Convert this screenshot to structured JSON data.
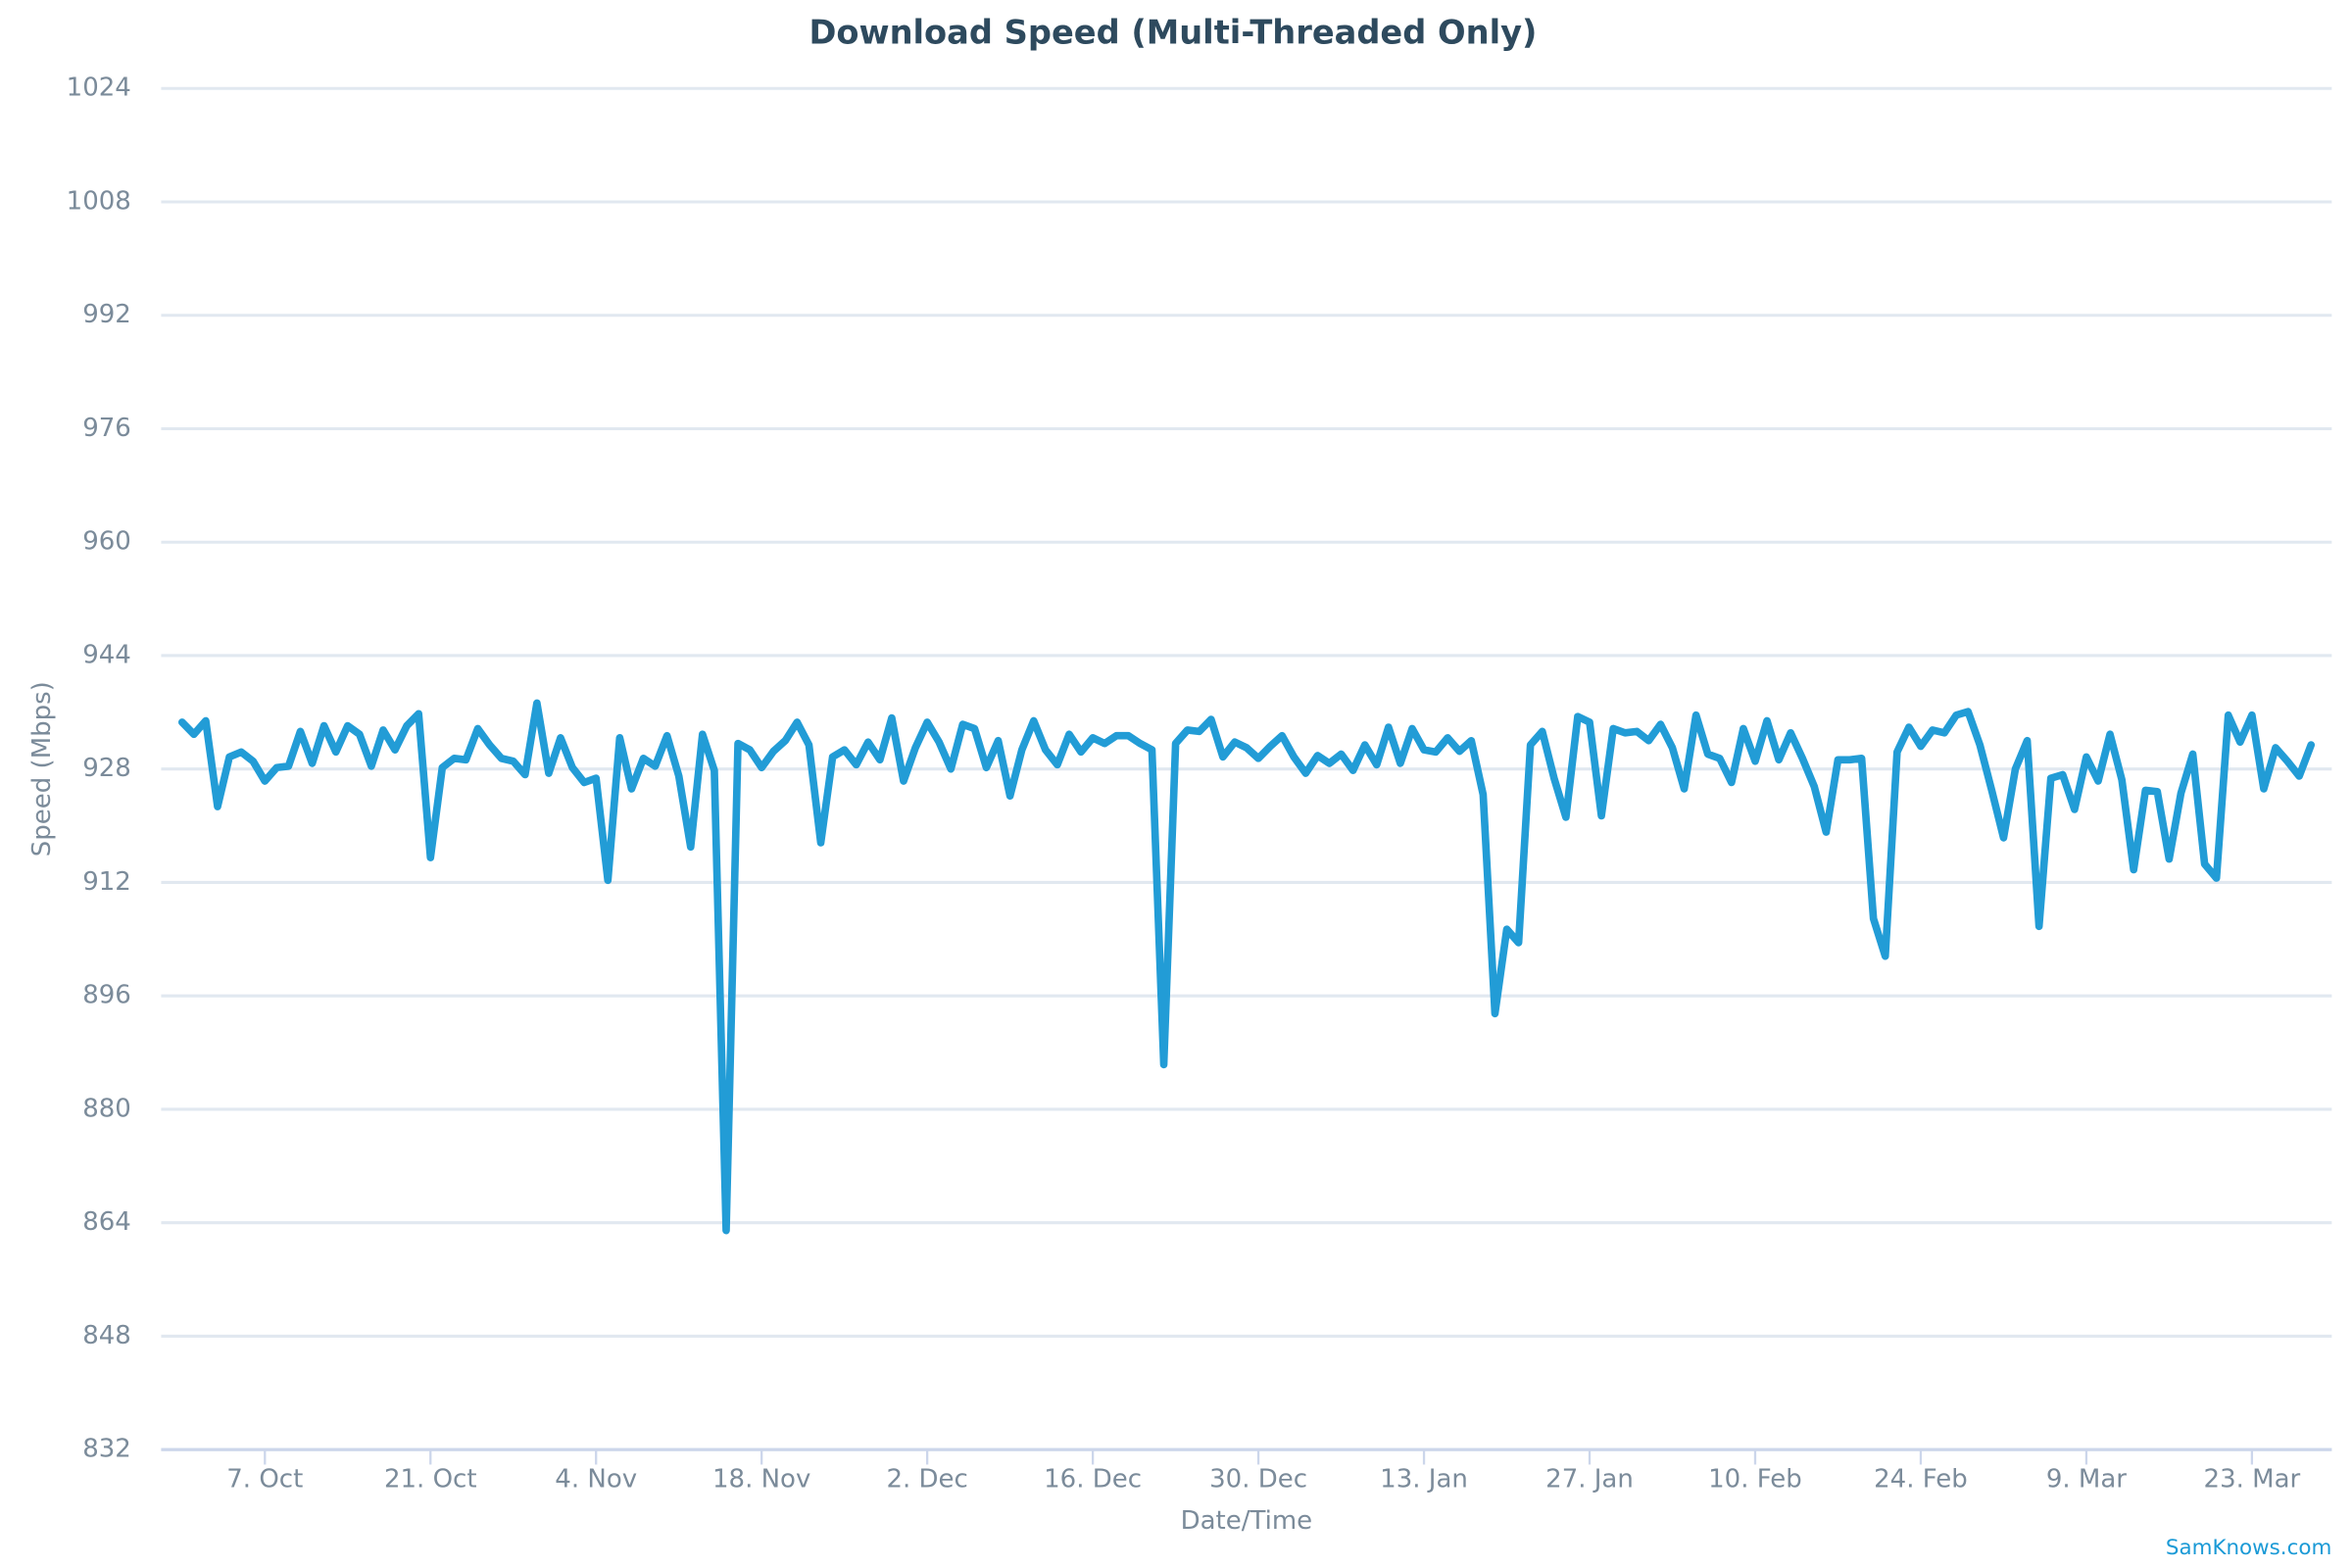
{
  "chart_data": {
    "type": "line",
    "title": "Download Speed (Multi-Threaded Only)",
    "x_label": "Date/Time",
    "y_label": "Speed (Mbps)",
    "credit": "SamKnows.com",
    "color": "#229cd6",
    "grid": true,
    "xlim": [
      -1.77,
      181.75
    ],
    "ylim": [
      832,
      1024
    ],
    "yticks": [
      832,
      848,
      864,
      880,
      896,
      912,
      928,
      944,
      960,
      976,
      992,
      1008,
      1024
    ],
    "xticks": [
      {
        "value": 7,
        "label": "7. Oct"
      },
      {
        "value": 21,
        "label": "21. Oct"
      },
      {
        "value": 35,
        "label": "4. Nov"
      },
      {
        "value": 49,
        "label": "18. Nov"
      },
      {
        "value": 63,
        "label": "2. Dec"
      },
      {
        "value": 77,
        "label": "16. Dec"
      },
      {
        "value": 91,
        "label": "30. Dec"
      },
      {
        "value": 105,
        "label": "13. Jan"
      },
      {
        "value": 119,
        "label": "27. Jan"
      },
      {
        "value": 133,
        "label": "10. Feb"
      },
      {
        "value": 147,
        "label": "24. Feb"
      },
      {
        "value": 161,
        "label": "9. Mar"
      },
      {
        "value": 175,
        "label": "23. Mar"
      }
    ],
    "x": [
      0,
      1,
      2,
      3,
      4,
      5,
      6,
      7,
      8,
      9,
      10,
      11,
      12,
      13,
      14,
      15,
      16,
      17,
      18,
      19,
      20,
      21,
      22,
      23,
      24,
      25,
      26,
      27,
      28,
      29,
      30,
      31,
      32,
      33,
      34,
      35,
      36,
      37,
      38,
      39,
      40,
      41,
      42,
      43,
      44,
      45,
      46,
      47,
      48,
      49,
      50,
      51,
      52,
      53,
      54,
      55,
      56,
      57,
      58,
      59,
      60,
      61,
      62,
      63,
      64,
      65,
      66,
      67,
      68,
      69,
      70,
      71,
      72,
      73,
      74,
      75,
      76,
      77,
      78,
      79,
      80,
      81,
      82,
      83,
      84,
      85,
      86,
      87,
      88,
      89,
      90,
      91,
      92,
      93,
      94,
      95,
      96,
      97,
      98,
      99,
      100,
      101,
      102,
      103,
      104,
      105,
      106,
      107,
      108,
      109,
      110,
      111,
      112,
      113,
      114,
      115,
      116,
      117,
      118,
      119,
      120,
      121,
      122,
      123,
      124,
      125,
      126,
      127,
      128,
      129,
      130,
      131,
      132,
      133,
      134,
      135,
      136,
      137,
      138,
      139,
      140,
      141,
      142,
      143,
      144,
      145,
      146,
      147,
      148,
      149,
      150,
      151,
      152,
      153,
      154,
      155,
      156,
      157,
      158,
      159,
      160,
      161,
      162,
      163,
      164,
      165,
      166,
      167,
      168,
      169,
      170,
      171,
      172,
      173,
      174,
      175,
      176,
      177,
      178,
      179,
      180
    ],
    "values": [
      934.6,
      932.9,
      934.8,
      922.7,
      929.7,
      930.4,
      929.1,
      926.3,
      928.2,
      928.4,
      933.3,
      928.8,
      934.1,
      930.4,
      934.1,
      932.9,
      928.4,
      933.5,
      930.7,
      934.1,
      935.8,
      915.5,
      928.2,
      929.5,
      929.3,
      933.7,
      931.4,
      929.5,
      929.1,
      927.2,
      937.3,
      927.4,
      932.4,
      928.2,
      926.1,
      926.7,
      912.3,
      932.4,
      925.2,
      929.5,
      928.4,
      932.7,
      927.0,
      917.0,
      932.9,
      927.8,
      862.9,
      931.6,
      930.7,
      928.2,
      930.5,
      932.0,
      934.6,
      931.4,
      917.6,
      929.7,
      930.7,
      928.6,
      931.8,
      929.3,
      935.2,
      926.3,
      931.0,
      934.6,
      931.8,
      928.0,
      934.3,
      933.7,
      928.2,
      932.0,
      924.2,
      930.7,
      934.8,
      930.7,
      928.6,
      932.9,
      930.4,
      932.4,
      931.6,
      932.7,
      932.7,
      931.6,
      930.7,
      886.3,
      931.6,
      933.5,
      933.3,
      935.0,
      929.7,
      931.8,
      931.0,
      929.5,
      931.2,
      932.7,
      929.7,
      927.4,
      929.9,
      928.8,
      930.1,
      927.8,
      931.4,
      928.6,
      933.9,
      928.8,
      933.7,
      930.7,
      930.4,
      932.4,
      930.5,
      932.0,
      924.4,
      893.5,
      905.4,
      903.5,
      931.4,
      933.3,
      926.7,
      921.2,
      935.4,
      934.6,
      921.4,
      933.7,
      933.1,
      933.3,
      932.0,
      934.3,
      931.0,
      925.2,
      935.6,
      930.1,
      929.5,
      926.1,
      933.7,
      929.1,
      934.8,
      929.3,
      933.1,
      929.5,
      925.5,
      919.1,
      929.3,
      929.3,
      929.5,
      906.9,
      901.6,
      930.4,
      933.9,
      931.2,
      933.5,
      933.1,
      935.6,
      936.1,
      931.4,
      925.0,
      918.3,
      928.0,
      932.0,
      905.8,
      926.7,
      927.2,
      922.3,
      929.7,
      926.3,
      932.9,
      926.5,
      913.8,
      925.0,
      924.8,
      915.3,
      924.6,
      930.1,
      914.6,
      912.6,
      935.6,
      931.8,
      935.6,
      925.2,
      931.0,
      929.1,
      927.0,
      931.4
    ]
  }
}
